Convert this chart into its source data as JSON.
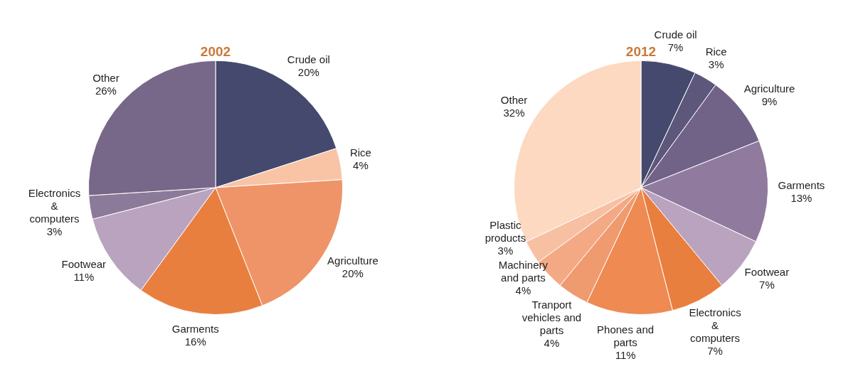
{
  "chart_data": [
    {
      "type": "pie",
      "title": "2002",
      "categories": [
        "Crude oil",
        "Rice",
        "Agriculture",
        "Garments",
        "Footwear",
        "Electronics & computers",
        "Other"
      ],
      "values": [
        20,
        4,
        20,
        16,
        11,
        3,
        26
      ],
      "value_labels": [
        "20%",
        "4%",
        "20%",
        "16%",
        "11%",
        "3%",
        "26%"
      ],
      "colors": [
        "#45496e",
        "#f9c4a6",
        "#ef9468",
        "#e97f3f",
        "#b9a3bf",
        "#8c7a9a",
        "#776788"
      ],
      "legend": false
    },
    {
      "type": "pie",
      "title": "2012",
      "categories": [
        "Crude oil",
        "Rice",
        "Agriculture",
        "Garments",
        "Footwear",
        "Electronics & computers",
        "Phones and parts",
        "Tranport vehicles and parts",
        "Machinery and parts",
        "Plastic products",
        "Other"
      ],
      "values": [
        7,
        3,
        9,
        13,
        7,
        7,
        11,
        4,
        4,
        3,
        32
      ],
      "value_labels": [
        "7%",
        "3%",
        "9%",
        "13%",
        "7%",
        "7%",
        "11%",
        "4%",
        "4%",
        "3%",
        "32%"
      ],
      "colors": [
        "#45496e",
        "#5e577c",
        "#716387",
        "#907b9e",
        "#b9a3bf",
        "#e97f3f",
        "#ee8a52",
        "#f09a70",
        "#f4a985",
        "#f8c0a2",
        "#fcd9c0"
      ],
      "legend": false
    }
  ]
}
